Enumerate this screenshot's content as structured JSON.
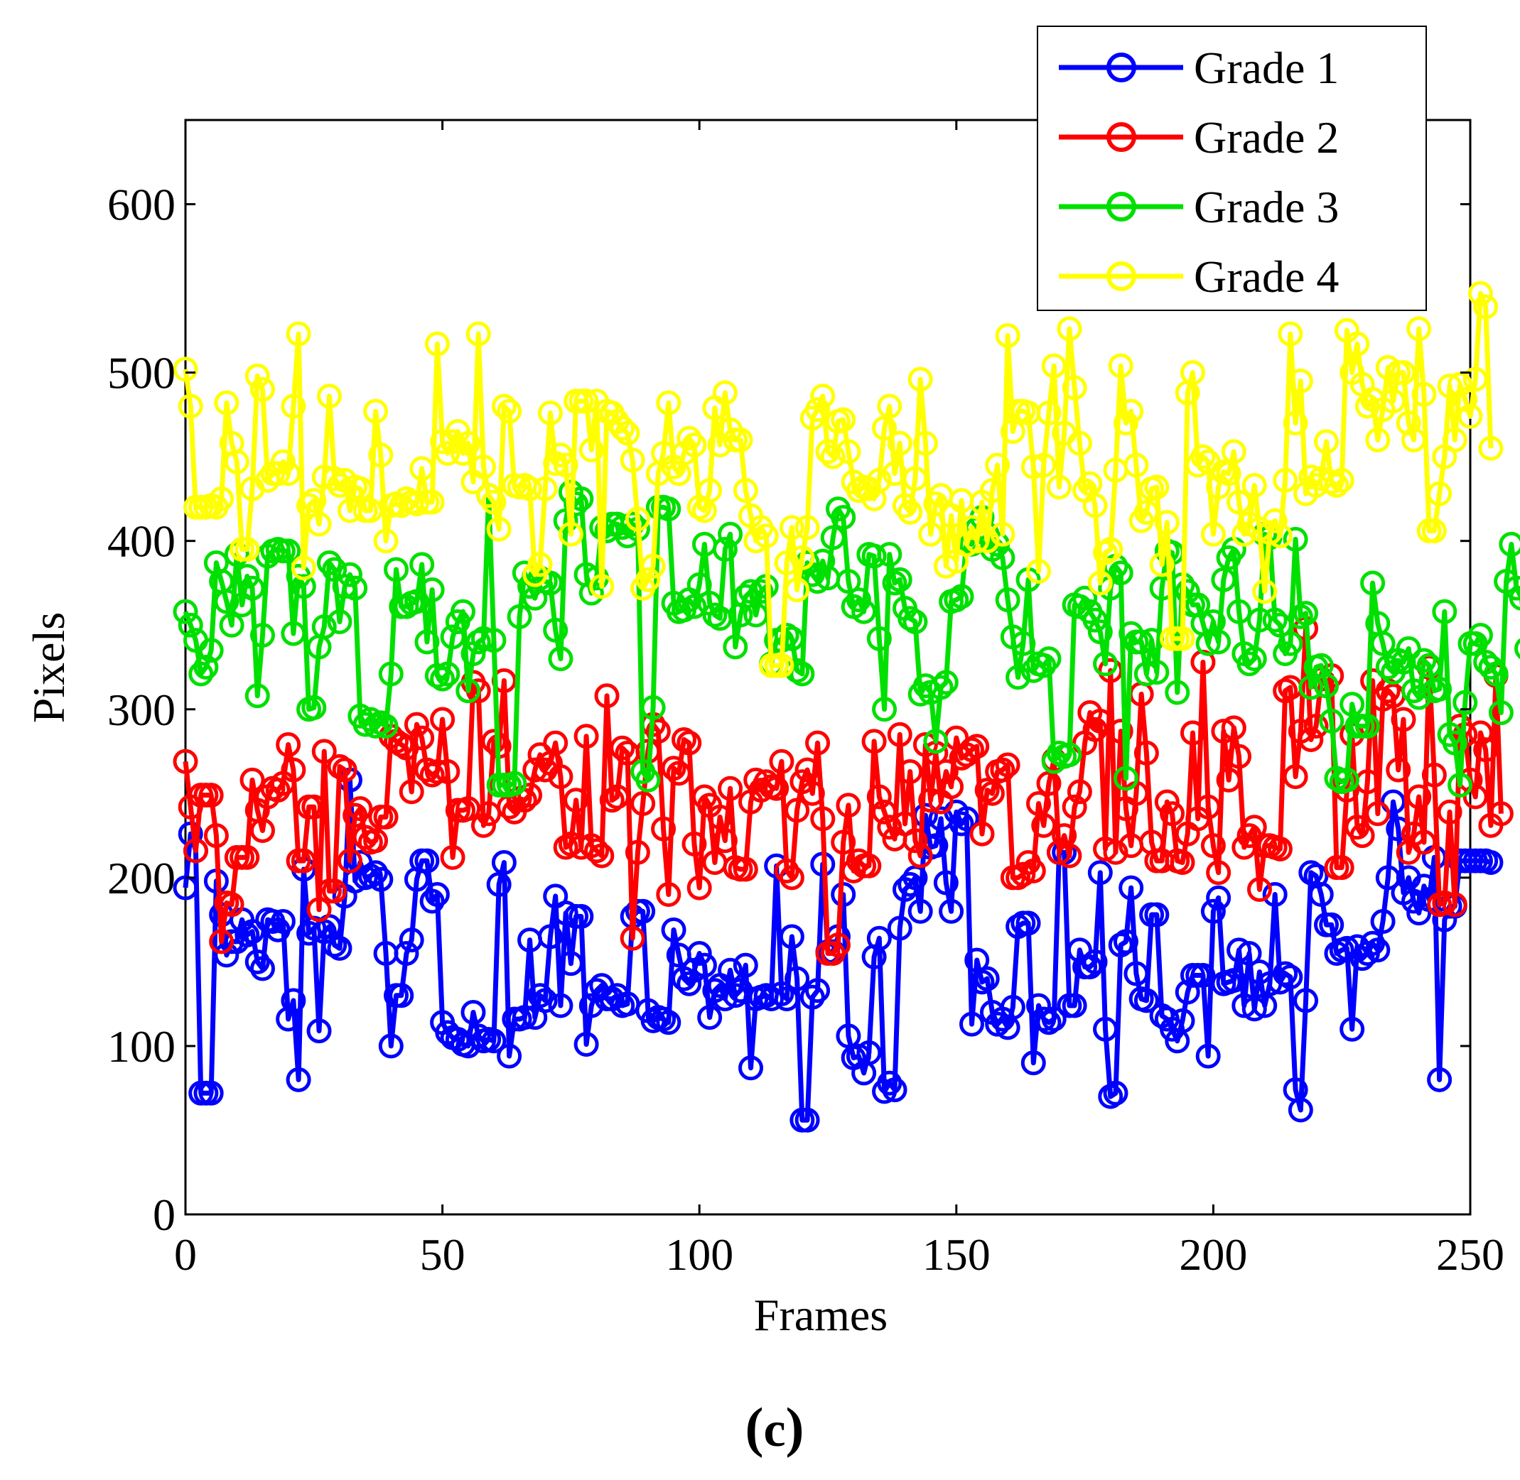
{
  "chart_data": {
    "type": "line",
    "title": "",
    "xlabel": "Frames",
    "ylabel": "Pixels",
    "xlim": [
      0,
      250
    ],
    "ylim": [
      0,
      650
    ],
    "xticks": [
      "0",
      "50",
      "100",
      "150",
      "200",
      "250"
    ],
    "yticks": [
      "0",
      "100",
      "200",
      "300",
      "400",
      "500",
      "600"
    ],
    "caption_prefix": "(",
    "caption_letter": "c",
    "caption_suffix": ")",
    "legend_position": "top-right",
    "marker": "circle",
    "series": [
      {
        "name": "Grade 1",
        "color": "#0000ff",
        "values": [
          194,
          226,
          216,
          72,
          72,
          72,
          198,
          178,
          154,
          162,
          162,
          175,
          166,
          168,
          150,
          146,
          175,
          174,
          169,
          174,
          116,
          127,
          80,
          205,
          167,
          170,
          109,
          168,
          171,
          160,
          158,
          189,
          258,
          198,
          209,
          200,
          201,
          203,
          199,
          155,
          100,
          130,
          130,
          155,
          163,
          199,
          210,
          210,
          186,
          190,
          114,
          108,
          105,
          104,
          101,
          100,
          120,
          106,
          103,
          104,
          103,
          196,
          209,
          94,
          116,
          116,
          117,
          163,
          117,
          130,
          127,
          165,
          189,
          124,
          179,
          149,
          177,
          177,
          101,
          124,
          133,
          136,
          128,
          128,
          130,
          124,
          125,
          177,
          180,
          180,
          121,
          115,
          117,
          116,
          114,
          169,
          154,
          140,
          137,
          145,
          155,
          148,
          117,
          133,
          136,
          128,
          145,
          130,
          133,
          148,
          87,
          128,
          129,
          130,
          128,
          207,
          131,
          128,
          165,
          140,
          56,
          56,
          129,
          133,
          208,
          156,
          156,
          165,
          190,
          106,
          93,
          94,
          84,
          96,
          153,
          164,
          73,
          78,
          74,
          170,
          193,
          196,
          200,
          180,
          237,
          218,
          219,
          235,
          197,
          180,
          239,
          232,
          235,
          113,
          151,
          138,
          140,
          120,
          113,
          116,
          111,
          123,
          171,
          173,
          173,
          90,
          124,
          116,
          114,
          116,
          215,
          215,
          124,
          124,
          157,
          147,
          147,
          150,
          203,
          110,
          70,
          72,
          160,
          162,
          194,
          143,
          128,
          127,
          178,
          178,
          118,
          116,
          110,
          103,
          115,
          132,
          142,
          142,
          142,
          94,
          180,
          188,
          137,
          138,
          139,
          157,
          124,
          155,
          122,
          144,
          124,
          137,
          190,
          138,
          143,
          141,
          74,
          62,
          127,
          203,
          201,
          190,
          172,
          172,
          155,
          157,
          158,
          110,
          159,
          152,
          155,
          161,
          157,
          174,
          200,
          245,
          229,
          191,
          200,
          186,
          179,
          195,
          187,
          212,
          80,
          175,
          183,
          183,
          210,
          210,
          210,
          210,
          210,
          210,
          209
        ]
      },
      {
        "name": "Grade 2",
        "color": "#ff0000",
        "values": [
          269,
          242,
          216,
          249,
          249,
          249,
          225,
          162,
          185,
          184,
          212,
          212,
          212,
          258,
          240,
          228,
          248,
          253,
          252,
          256,
          279,
          264,
          210,
          210,
          242,
          242,
          181,
          275,
          192,
          192,
          266,
          264,
          210,
          237,
          241,
          224,
          221,
          222,
          236,
          236,
          284,
          281,
          279,
          277,
          251,
          291,
          283,
          264,
          261,
          263,
          294,
          263,
          212,
          240,
          240,
          241,
          316,
          311,
          231,
          238,
          281,
          278,
          317,
          242,
          239,
          247,
          246,
          249,
          264,
          273,
          264,
          268,
          280,
          260,
          218,
          220,
          246,
          218,
          284,
          219,
          216,
          213,
          308,
          246,
          248,
          277,
          274,
          164,
          215,
          244,
          275,
          291,
          287,
          229,
          190,
          265,
          262,
          282,
          280,
          220,
          194,
          248,
          243,
          209,
          236,
          222,
          253,
          206,
          205,
          205,
          245,
          258,
          252,
          257,
          254,
          253,
          269,
          204,
          200,
          240,
          257,
          264,
          250,
          280,
          235,
          155,
          155,
          160,
          221,
          243,
          204,
          210,
          207,
          207,
          281,
          248,
          239,
          230,
          223,
          285,
          232,
          263,
          222,
          213,
          279,
          246,
          274,
          245,
          263,
          254,
          283,
          271,
          273,
          276,
          278,
          226,
          252,
          250,
          263,
          264,
          267,
          200,
          200,
          202,
          209,
          204,
          244,
          231,
          256,
          270,
          215,
          225,
          213,
          242,
          251,
          280,
          298,
          288,
          293,
          217,
          323,
          215,
          287,
          241,
          219,
          250,
          309,
          274,
          221,
          210,
          210,
          245,
          238,
          210,
          209,
          226,
          286,
          235,
          328,
          242,
          219,
          203,
          287,
          258,
          289,
          272,
          218,
          225,
          230,
          193,
          219,
          219,
          218,
          217,
          311,
          313,
          260,
          287,
          348,
          282,
          290,
          318,
          314,
          320,
          206,
          206,
          252,
          285,
          230,
          225,
          257,
          317,
          238,
          306,
          311,
          308,
          264,
          294,
          215,
          226,
          248,
          221,
          325,
          261,
          184,
          185,
          239,
          184,
          290,
          285,
          258,
          248,
          286,
          276,
          231,
          320,
          238
        ]
      },
      {
        "name": "Grade 3",
        "color": "#00e000",
        "values": [
          358,
          350,
          341,
          321,
          325,
          335,
          387,
          376,
          364,
          350,
          392,
          362,
          379,
          372,
          308,
          344,
          391,
          394,
          395,
          394,
          394,
          345,
          379,
          373,
          300,
          301,
          337,
          349,
          387,
          383,
          352,
          373,
          380,
          372,
          296,
          291,
          294,
          290,
          292,
          290,
          321,
          383,
          361,
          361,
          363,
          364,
          386,
          340,
          371,
          320,
          318,
          321,
          343,
          352,
          358,
          311,
          333,
          340,
          342,
          427,
          341,
          255,
          255,
          255,
          256,
          355,
          381,
          373,
          366,
          378,
          376,
          375,
          347,
          330,
          412,
          429,
          422,
          425,
          380,
          369,
          378,
          408,
          406,
          410,
          410,
          408,
          403,
          410,
          407,
          263,
          258,
          301,
          420,
          420,
          419,
          363,
          358,
          359,
          365,
          361,
          374,
          398,
          363,
          356,
          354,
          395,
          404,
          337,
          356,
          367,
          370,
          356,
          370,
          373,
          327,
          341,
          341,
          344,
          342,
          323,
          321,
          387,
          380,
          376,
          388,
          378,
          402,
          419,
          414,
          376,
          361,
          365,
          358,
          392,
          391,
          342,
          300,
          392,
          375,
          377,
          360,
          354,
          352,
          309,
          314,
          310,
          281,
          313,
          316,
          364,
          365,
          367,
          400,
          398,
          407,
          414,
          404,
          395,
          398,
          390,
          365,
          343,
          319,
          339,
          377,
          323,
          327,
          326,
          330,
          269,
          274,
          272,
          273,
          362,
          361,
          366,
          358,
          353,
          346,
          327,
          372,
          385,
          381,
          259,
          345,
          340,
          340,
          321,
          341,
          322,
          372,
          394,
          393,
          310,
          374,
          370,
          362,
          362,
          351,
          339,
          352,
          340,
          377,
          390,
          395,
          358,
          333,
          327,
          330,
          353,
          404,
          402,
          353,
          350,
          333,
          339,
          401,
          355,
          357,
          313,
          325,
          326,
          314,
          293,
          259,
          257,
          258,
          303,
          290,
          290,
          290,
          375,
          351,
          339,
          325,
          322,
          329,
          328,
          336,
          311,
          307,
          329,
          326,
          311,
          312,
          358,
          285,
          280,
          255,
          304,
          339,
          339,
          344,
          328,
          325,
          321,
          298,
          376,
          398,
          372,
          366,
          336
        ]
      },
      {
        "name": "Grade 4",
        "color": "#ffff00",
        "values": [
          502,
          480,
          420,
          420,
          420,
          421,
          420,
          425,
          482,
          458,
          447,
          395,
          395,
          431,
          498,
          490,
          436,
          440,
          440,
          447,
          440,
          480,
          523,
          384,
          421,
          424,
          410,
          438,
          486,
          437,
          433,
          436,
          418,
          432,
          431,
          418,
          418,
          477,
          451,
          400,
          421,
          422,
          421,
          425,
          423,
          422,
          443,
          423,
          423,
          517,
          459,
          452,
          459,
          465,
          452,
          458,
          435,
          523,
          444,
          427,
          423,
          407,
          480,
          477,
          433,
          432,
          433,
          431,
          380,
          386,
          431,
          476,
          446,
          451,
          445,
          404,
          483,
          483,
          483,
          454,
          483,
          373,
          477,
          476,
          471,
          467,
          464,
          448,
          413,
          372,
          377,
          385,
          440,
          452,
          482,
          444,
          440,
          452,
          461,
          457,
          420,
          418,
          430,
          479,
          457,
          488,
          466,
          460,
          460,
          430,
          415,
          400,
          408,
          403,
          326,
          326,
          326,
          387,
          408,
          371,
          390,
          408,
          473,
          478,
          486,
          453,
          450,
          471,
          472,
          453,
          435,
          430,
          432,
          431,
          425,
          436,
          467,
          480,
          440,
          458,
          421,
          417,
          437,
          496,
          458,
          404,
          422,
          427,
          385,
          415,
          388,
          424,
          398,
          408,
          400,
          423,
          400,
          430,
          445,
          404,
          522,
          465,
          477,
          477,
          476,
          444,
          382,
          445,
          476,
          504,
          432,
          464,
          526,
          491,
          458,
          430,
          434,
          421,
          375,
          393,
          395,
          442,
          504,
          470,
          477,
          445,
          412,
          417,
          431,
          432,
          386,
          411,
          342,
          342,
          342,
          488,
          500,
          445,
          450,
          447,
          404,
          432,
          441,
          440,
          453,
          423,
          404,
          410,
          433,
          407,
          370,
          405,
          412,
          403,
          436,
          523,
          470,
          495,
          428,
          438,
          433,
          437,
          459,
          435,
          433,
          436,
          525,
          500,
          517,
          493,
          480,
          484,
          460,
          478,
          503,
          483,
          500,
          500,
          470,
          460,
          526,
          487,
          406,
          406,
          428,
          450,
          492,
          460,
          493,
          484,
          474,
          496,
          547,
          539,
          455
        ]
      }
    ]
  }
}
